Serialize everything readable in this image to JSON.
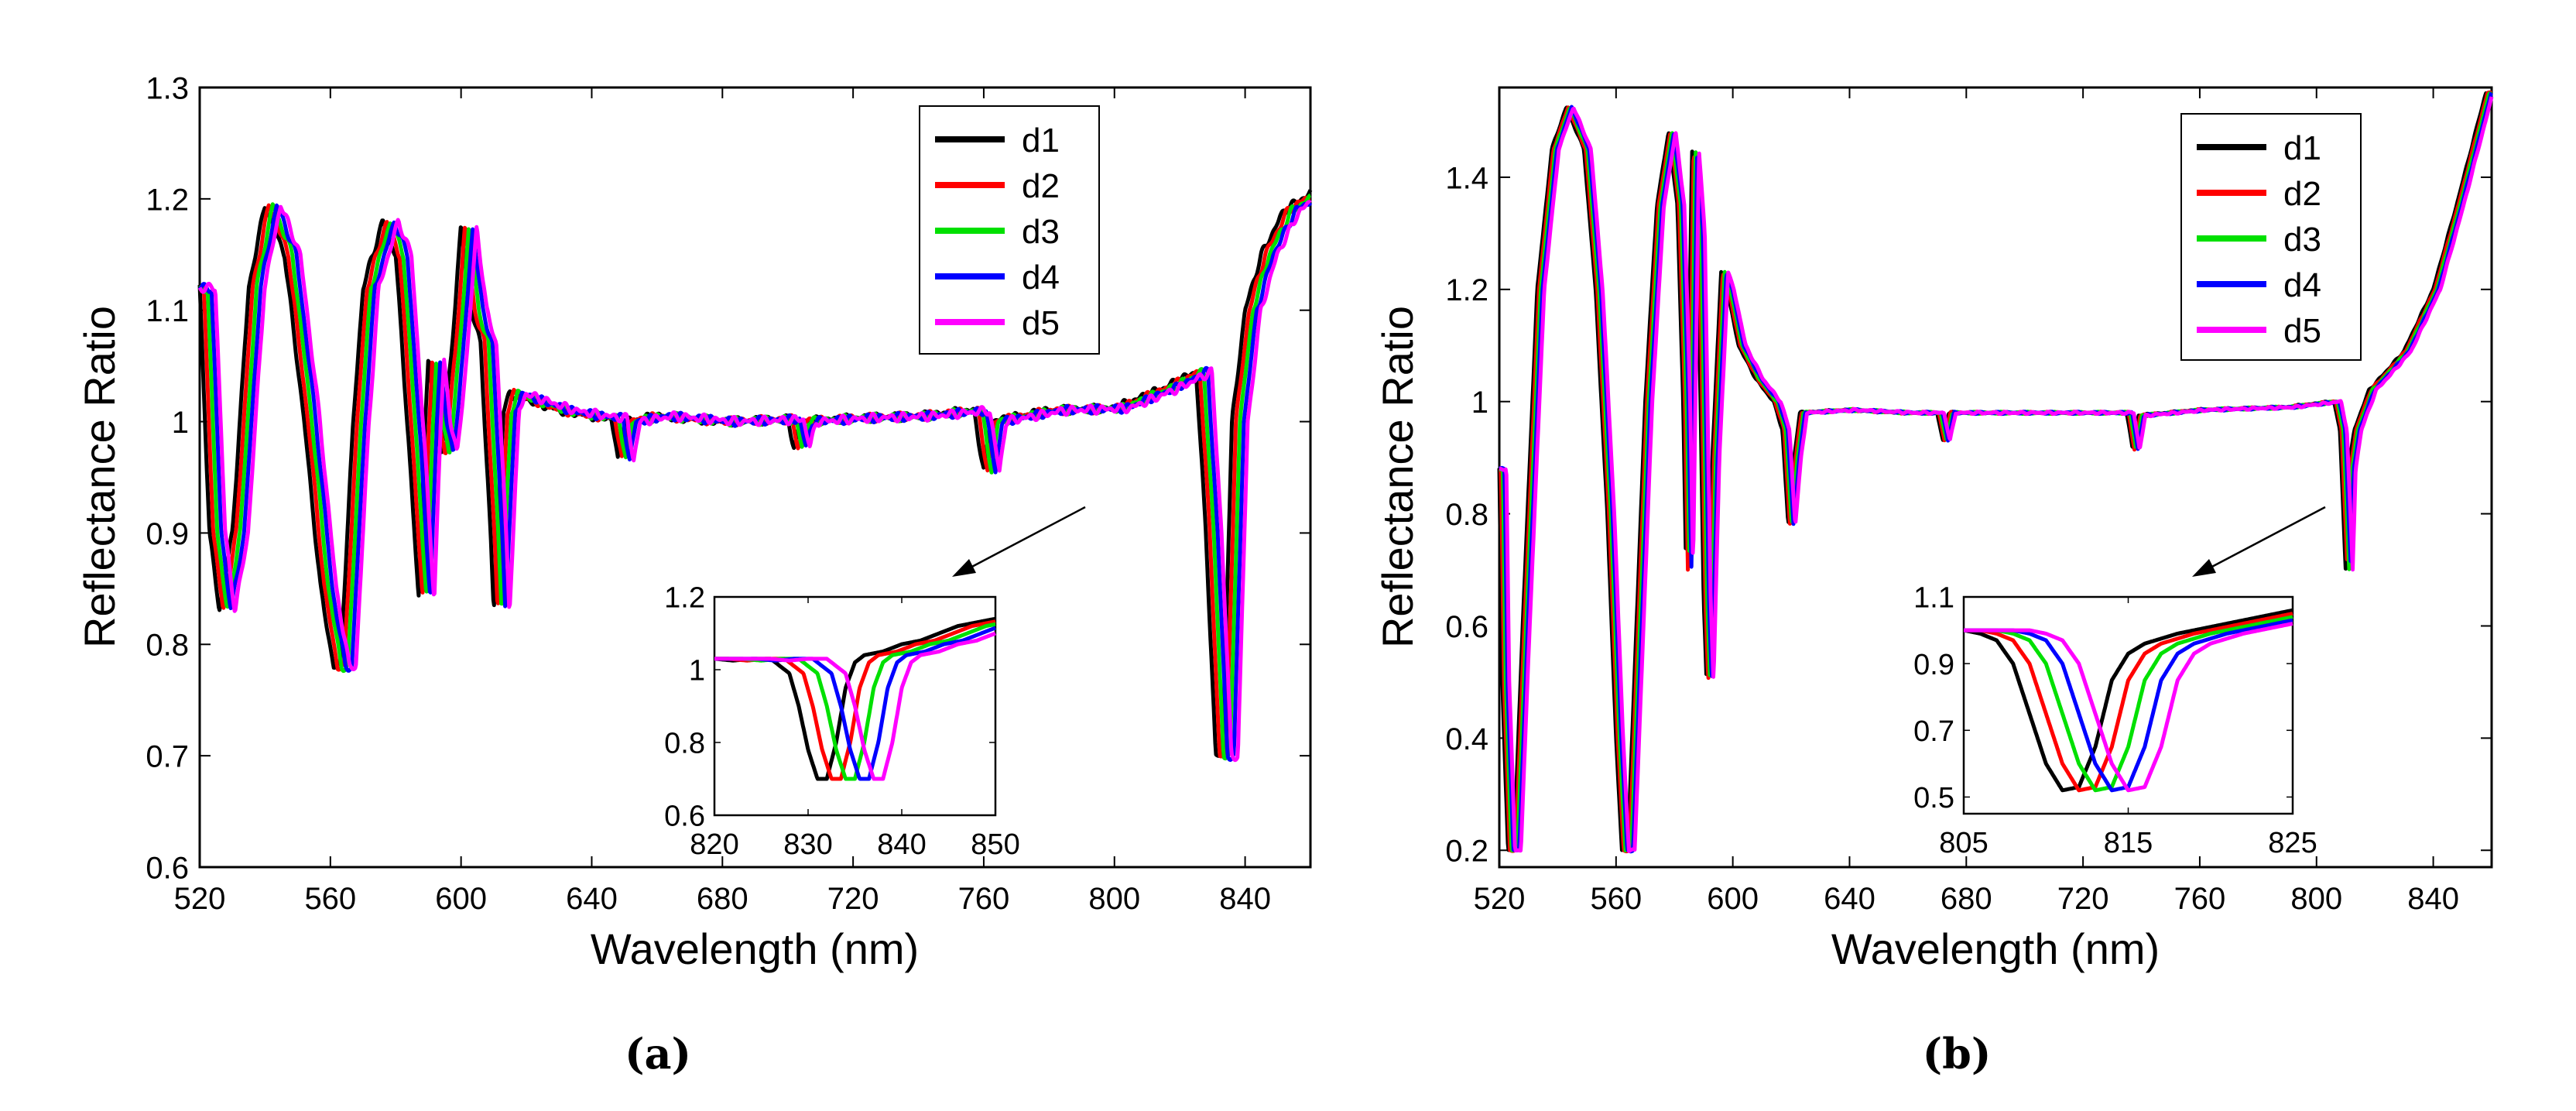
{
  "colors": {
    "d1": "#000000",
    "d2": "#ff0000",
    "d3": "#00e000",
    "d4": "#0000ff",
    "d5": "#ff00ff",
    "axis": "#000000"
  },
  "chart_data": [
    {
      "id": "a",
      "type": "line",
      "caption": "(a)",
      "xlabel": "Wavelength (nm)",
      "ylabel": "Reflectance Ratio",
      "xlim": [
        520,
        860
      ],
      "ylim": [
        0.6,
        1.3
      ],
      "xticks": [
        520,
        560,
        600,
        640,
        680,
        720,
        760,
        800,
        840
      ],
      "yticks": [
        0.6,
        0.7,
        0.8,
        0.9,
        1,
        1.1,
        1.2,
        1.3
      ],
      "ytick_labels": [
        "0.6",
        "0.7",
        "0.8",
        "0.9",
        "1",
        "1.1",
        "1.2",
        "1.3"
      ],
      "legend": [
        "d1",
        "d2",
        "d3",
        "d4",
        "d5"
      ],
      "legend_position": "top-right",
      "series": [
        {
          "name": "d1",
          "shift": 0
        },
        {
          "name": "d2",
          "shift": 1.2
        },
        {
          "name": "d3",
          "shift": 2.4
        },
        {
          "name": "d4",
          "shift": 3.6
        },
        {
          "name": "d5",
          "shift": 4.8
        }
      ],
      "baseline": [
        [
          520,
          1.12
        ],
        [
          523,
          0.9
        ],
        [
          526,
          0.83
        ],
        [
          530,
          0.9
        ],
        [
          535,
          1.12
        ],
        [
          540,
          1.195
        ],
        [
          546,
          1.15
        ],
        [
          552,
          1.0
        ],
        [
          557,
          0.85
        ],
        [
          561,
          0.78
        ],
        [
          563,
          0.78
        ],
        [
          567,
          1.0
        ],
        [
          570,
          1.12
        ],
        [
          576,
          1.18
        ],
        [
          580,
          1.15
        ],
        [
          584,
          0.98
        ],
        [
          587,
          0.84
        ],
        [
          589,
          1.0
        ],
        [
          590,
          1.055
        ],
        [
          592,
          1.0
        ],
        [
          594,
          0.97
        ],
        [
          597,
          1.06
        ],
        [
          600,
          1.175
        ],
        [
          603,
          1.1
        ],
        [
          606,
          1.07
        ],
        [
          609,
          0.9
        ],
        [
          610,
          0.83
        ],
        [
          613,
          1.01
        ],
        [
          615,
          1.025
        ],
        [
          620,
          1.02
        ],
        [
          630,
          1.01
        ],
        [
          640,
          1.005
        ],
        [
          646,
          1.003
        ],
        [
          648,
          0.965
        ],
        [
          650,
          1.0
        ],
        [
          660,
          1.005
        ],
        [
          680,
          1.0
        ],
        [
          700,
          1.002
        ],
        [
          702,
          0.977
        ],
        [
          704,
          1.0
        ],
        [
          720,
          1.003
        ],
        [
          740,
          1.005
        ],
        [
          757,
          1.01
        ],
        [
          760,
          0.955
        ],
        [
          762,
          1.0
        ],
        [
          780,
          1.01
        ],
        [
          800,
          1.012
        ],
        [
          815,
          1.03
        ],
        [
          825,
          1.045
        ],
        [
          828,
          0.9
        ],
        [
          831,
          0.7
        ],
        [
          833,
          0.7
        ],
        [
          836,
          1.0
        ],
        [
          840,
          1.1
        ],
        [
          845,
          1.15
        ],
        [
          852,
          1.19
        ],
        [
          860,
          1.205
        ]
      ],
      "inset": {
        "xlim": [
          820,
          850
        ],
        "ylim": [
          0.6,
          1.2
        ],
        "xticks": [
          820,
          830,
          840,
          850
        ],
        "yticks": [
          0.6,
          0.8,
          1,
          1.2
        ],
        "ytick_labels": [
          "0.6",
          "0.8",
          "1",
          "1.2"
        ],
        "series": [
          {
            "name": "d1",
            "shift": 0
          },
          {
            "name": "d2",
            "shift": 1.5
          },
          {
            "name": "d3",
            "shift": 3
          },
          {
            "name": "d4",
            "shift": 4.5
          },
          {
            "name": "d5",
            "shift": 6
          }
        ],
        "baseline": [
          [
            820,
            1.03
          ],
          [
            822,
            1.025
          ],
          [
            824,
            1.03
          ],
          [
            826,
            1.03
          ],
          [
            828,
            0.99
          ],
          [
            829,
            0.9
          ],
          [
            830,
            0.78
          ],
          [
            831,
            0.7
          ],
          [
            832,
            0.7
          ],
          [
            833,
            0.8
          ],
          [
            834,
            0.95
          ],
          [
            835,
            1.02
          ],
          [
            836,
            1.04
          ],
          [
            838,
            1.05
          ],
          [
            840,
            1.07
          ],
          [
            842,
            1.08
          ],
          [
            844,
            1.1
          ],
          [
            846,
            1.12
          ],
          [
            848,
            1.13
          ],
          [
            850,
            1.14
          ]
        ]
      }
    },
    {
      "id": "b",
      "type": "line",
      "caption": "(b)",
      "xlabel": "Wavelength (nm)",
      "ylabel": "Reflectance Ratio",
      "xlim": [
        520,
        860
      ],
      "ylim": [
        0.17,
        1.56
      ],
      "xticks": [
        520,
        560,
        600,
        640,
        680,
        720,
        760,
        800,
        840
      ],
      "yticks": [
        0.2,
        0.4,
        0.6,
        0.8,
        1,
        1.2,
        1.4
      ],
      "ytick_labels": [
        "0.2",
        "0.4",
        "0.6",
        "0.8",
        "1",
        "1.2",
        "1.4"
      ],
      "legend": [
        "d1",
        "d2",
        "d3",
        "d4",
        "d5"
      ],
      "legend_position": "top-right",
      "series": [
        {
          "name": "d1",
          "shift": 0
        },
        {
          "name": "d2",
          "shift": 0.6
        },
        {
          "name": "d3",
          "shift": 1.2
        },
        {
          "name": "d4",
          "shift": 1.8
        },
        {
          "name": "d5",
          "shift": 2.4
        }
      ],
      "baseline": [
        [
          520,
          0.88
        ],
        [
          521,
          0.5
        ],
        [
          523,
          0.2
        ],
        [
          525,
          0.2
        ],
        [
          528,
          0.6
        ],
        [
          533,
          1.2
        ],
        [
          538,
          1.45
        ],
        [
          543,
          1.525
        ],
        [
          549,
          1.45
        ],
        [
          553,
          1.2
        ],
        [
          557,
          0.8
        ],
        [
          560,
          0.4
        ],
        [
          562,
          0.2
        ],
        [
          564,
          0.2
        ],
        [
          567,
          0.6
        ],
        [
          570,
          1.0
        ],
        [
          574,
          1.35
        ],
        [
          578,
          1.48
        ],
        [
          581,
          1.35
        ],
        [
          583,
          1.0
        ],
        [
          584,
          0.7
        ],
        [
          586,
          1.45
        ],
        [
          588,
          1.3
        ],
        [
          590,
          0.65
        ],
        [
          591,
          0.5
        ],
        [
          593,
          0.9
        ],
        [
          596,
          1.23
        ],
        [
          598,
          1.2
        ],
        [
          602,
          1.1
        ],
        [
          608,
          1.04
        ],
        [
          614,
          1.0
        ],
        [
          617,
          0.95
        ],
        [
          619,
          0.78
        ],
        [
          621,
          0.9
        ],
        [
          623,
          0.98
        ],
        [
          640,
          0.985
        ],
        [
          660,
          0.98
        ],
        [
          670,
          0.98
        ],
        [
          672,
          0.93
        ],
        [
          674,
          0.98
        ],
        [
          700,
          0.98
        ],
        [
          730,
          0.98
        ],
        [
          735,
          0.98
        ],
        [
          737,
          0.915
        ],
        [
          739,
          0.975
        ],
        [
          760,
          0.985
        ],
        [
          790,
          0.99
        ],
        [
          806,
          1.0
        ],
        [
          808,
          0.95
        ],
        [
          810,
          0.7
        ],
        [
          811,
          0.88
        ],
        [
          813,
          0.95
        ],
        [
          818,
          1.02
        ],
        [
          825,
          1.06
        ],
        [
          830,
          1.09
        ],
        [
          840,
          1.2
        ],
        [
          848,
          1.35
        ],
        [
          853,
          1.45
        ],
        [
          858,
          1.55
        ]
      ],
      "inset": {
        "xlim": [
          805,
          825
        ],
        "ylim": [
          0.45,
          1.1
        ],
        "xticks": [
          805,
          815,
          825
        ],
        "yticks": [
          0.5,
          0.7,
          0.9,
          1.1
        ],
        "ytick_labels": [
          "0.5",
          "0.7",
          "0.9",
          "1.1"
        ],
        "series": [
          {
            "name": "d1",
            "shift": 0
          },
          {
            "name": "d2",
            "shift": 1
          },
          {
            "name": "d3",
            "shift": 2
          },
          {
            "name": "d4",
            "shift": 3
          },
          {
            "name": "d5",
            "shift": 4
          }
        ],
        "baseline": [
          [
            805,
            1.0
          ],
          [
            806,
            0.99
          ],
          [
            807,
            0.97
          ],
          [
            808,
            0.9
          ],
          [
            809,
            0.75
          ],
          [
            810,
            0.6
          ],
          [
            811,
            0.52
          ],
          [
            812,
            0.53
          ],
          [
            813,
            0.65
          ],
          [
            814,
            0.85
          ],
          [
            815,
            0.93
          ],
          [
            816,
            0.96
          ],
          [
            818,
            0.99
          ],
          [
            820,
            1.01
          ],
          [
            822,
            1.03
          ],
          [
            825,
            1.06
          ]
        ]
      }
    }
  ]
}
